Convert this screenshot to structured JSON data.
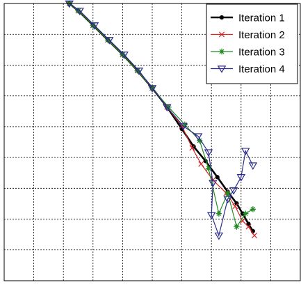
{
  "chart_data": {
    "type": "line",
    "title": "",
    "xlabel": "",
    "ylabel": "",
    "grid": true,
    "legend_position": "top-right",
    "xlim": [
      0,
      10
    ],
    "ylim": [
      0,
      9.5
    ],
    "series": [
      {
        "name": "Iteration 1",
        "color": "#000000",
        "marker": "dot",
        "points": [
          [
            2.2,
            9.5
          ],
          [
            2.5,
            9.25
          ],
          [
            3.0,
            8.75
          ],
          [
            3.5,
            8.25
          ],
          [
            4.0,
            7.75
          ],
          [
            4.5,
            7.2
          ],
          [
            5.0,
            6.6
          ],
          [
            5.5,
            5.95
          ],
          [
            6.0,
            5.2
          ],
          [
            6.4,
            4.6
          ],
          [
            6.8,
            4.1
          ],
          [
            7.2,
            3.55
          ],
          [
            7.55,
            3.05
          ],
          [
            7.85,
            2.65
          ],
          [
            8.05,
            2.3
          ],
          [
            8.25,
            1.95
          ],
          [
            8.4,
            1.7
          ]
        ]
      },
      {
        "name": "Iteration 2",
        "color": "#d62728",
        "marker": "x",
        "points": [
          [
            2.2,
            9.5
          ],
          [
            2.5,
            9.25
          ],
          [
            3.0,
            8.75
          ],
          [
            3.5,
            8.25
          ],
          [
            4.0,
            7.75
          ],
          [
            4.5,
            7.2
          ],
          [
            5.0,
            6.6
          ],
          [
            5.5,
            5.95
          ],
          [
            6.0,
            5.3
          ],
          [
            6.35,
            4.55
          ],
          [
            6.65,
            4.0
          ],
          [
            7.05,
            3.45
          ],
          [
            7.5,
            3.0
          ],
          [
            7.8,
            2.55
          ],
          [
            8.05,
            2.05
          ],
          [
            8.25,
            1.85
          ],
          [
            8.45,
            1.55
          ]
        ]
      },
      {
        "name": "Iteration 3",
        "color": "#228b22",
        "marker": "star",
        "points": [
          [
            2.2,
            9.5
          ],
          [
            2.5,
            9.25
          ],
          [
            3.0,
            8.75
          ],
          [
            3.5,
            8.25
          ],
          [
            4.0,
            7.75
          ],
          [
            4.5,
            7.2
          ],
          [
            5.0,
            6.6
          ],
          [
            5.55,
            5.95
          ],
          [
            6.1,
            5.35
          ],
          [
            6.6,
            4.8
          ],
          [
            6.9,
            3.85
          ],
          [
            7.25,
            2.3
          ],
          [
            7.55,
            3.0
          ],
          [
            7.85,
            1.85
          ],
          [
            8.15,
            2.3
          ],
          [
            8.4,
            2.45
          ]
        ]
      },
      {
        "name": "Iteration 4",
        "color": "#2b2b8c",
        "marker": "triangle-down",
        "points": [
          [
            2.2,
            9.5
          ],
          [
            2.55,
            9.25
          ],
          [
            3.05,
            8.75
          ],
          [
            3.55,
            8.25
          ],
          [
            4.05,
            7.75
          ],
          [
            4.55,
            7.2
          ],
          [
            5.0,
            6.6
          ],
          [
            5.5,
            5.95
          ],
          [
            6.05,
            5.3
          ],
          [
            6.55,
            4.95
          ],
          [
            6.9,
            4.4
          ],
          [
            7.05,
            3.35
          ],
          [
            7.0,
            2.25
          ],
          [
            7.25,
            1.55
          ],
          [
            7.55,
            2.8
          ],
          [
            7.75,
            3.1
          ],
          [
            8.0,
            3.55
          ],
          [
            8.15,
            4.45
          ],
          [
            8.4,
            3.95
          ]
        ]
      }
    ]
  }
}
